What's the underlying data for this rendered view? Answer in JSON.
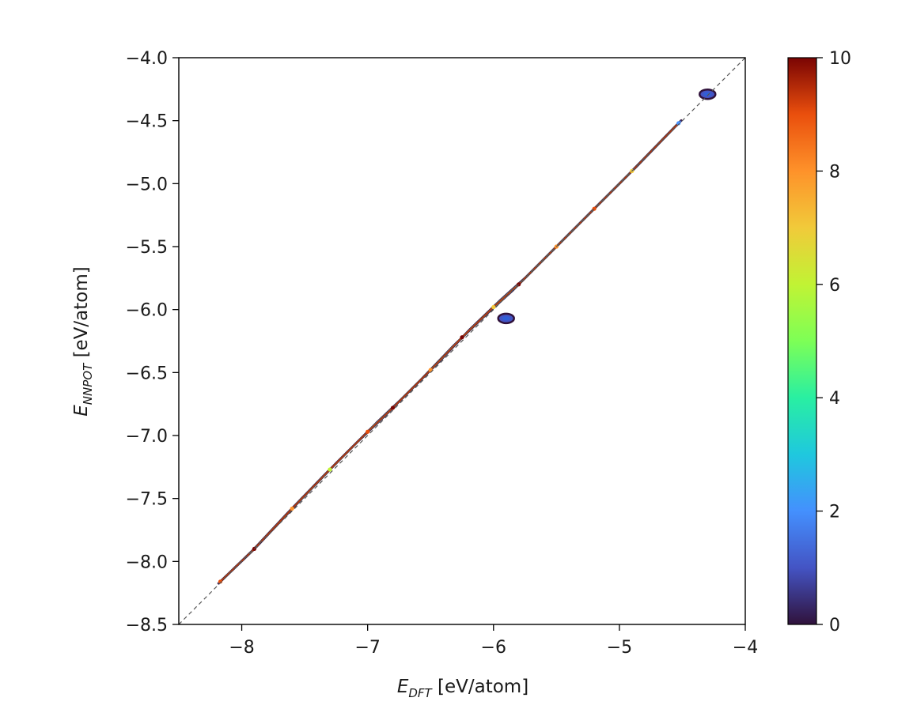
{
  "chart_data": {
    "type": "heatmap",
    "x_axis": {
      "symbol": "E",
      "subscript": "DFT",
      "unit": "[eV/atom]",
      "ticks": [
        -8,
        -7,
        -6,
        -5,
        -4
      ],
      "tick_labels": [
        "−8",
        "−7",
        "−6",
        "−5",
        "−4"
      ],
      "xlim": [
        -8.5,
        -4.0
      ]
    },
    "y_axis": {
      "symbol": "E",
      "subscript": "NNPOT",
      "unit": "[eV/atom]",
      "ticks": [
        -4.0,
        -4.5,
        -5.0,
        -5.5,
        -6.0,
        -6.5,
        -7.0,
        -7.5,
        -8.0,
        -8.5
      ],
      "tick_labels": [
        "−4.0",
        "−4.5",
        "−5.0",
        "−5.5",
        "−6.0",
        "−6.5",
        "−7.0",
        "−7.5",
        "−8.0",
        "−8.5"
      ],
      "ylim": [
        -8.5,
        -4.0
      ]
    },
    "reference_line": {
      "style": "dashed",
      "color": "#555555",
      "from": [
        -8.5,
        -8.5
      ],
      "to": [
        -4.0,
        -4.0
      ]
    },
    "density_band": [
      {
        "x": -8.17,
        "y": -8.16,
        "w": 0.02,
        "d": 9
      },
      {
        "x": -7.9,
        "y": -7.9,
        "w": 0.025,
        "d": 10
      },
      {
        "x": -7.6,
        "y": -7.58,
        "w": 0.05,
        "d": 8
      },
      {
        "x": -7.3,
        "y": -7.27,
        "w": 0.07,
        "d": 6
      },
      {
        "x": -7.0,
        "y": -6.97,
        "w": 0.1,
        "d": 9
      },
      {
        "x": -6.8,
        "y": -6.78,
        "w": 0.11,
        "d": 10
      },
      {
        "x": -6.5,
        "y": -6.48,
        "w": 0.1,
        "d": 8
      },
      {
        "x": -6.25,
        "y": -6.22,
        "w": 0.09,
        "d": 10
      },
      {
        "x": -6.0,
        "y": -5.98,
        "w": 0.08,
        "d": 7
      },
      {
        "x": -5.8,
        "y": -5.8,
        "w": 0.07,
        "d": 10
      },
      {
        "x": -5.5,
        "y": -5.5,
        "w": 0.06,
        "d": 8
      },
      {
        "x": -5.2,
        "y": -5.2,
        "w": 0.05,
        "d": 9
      },
      {
        "x": -4.9,
        "y": -4.9,
        "w": 0.04,
        "d": 7
      },
      {
        "x": -4.53,
        "y": -4.52,
        "w": 0.03,
        "d": 2
      }
    ],
    "isolated_clusters": [
      {
        "x": -4.3,
        "y": -4.29,
        "d": 1
      },
      {
        "x": -5.9,
        "y": -6.07,
        "d": 1
      }
    ],
    "colorbar": {
      "colormap": "turbo",
      "range": [
        0,
        10
      ],
      "ticks": [
        0,
        2,
        4,
        6,
        8,
        10
      ],
      "tick_labels": [
        "0",
        "2",
        "4",
        "6",
        "8",
        "10"
      ]
    }
  }
}
